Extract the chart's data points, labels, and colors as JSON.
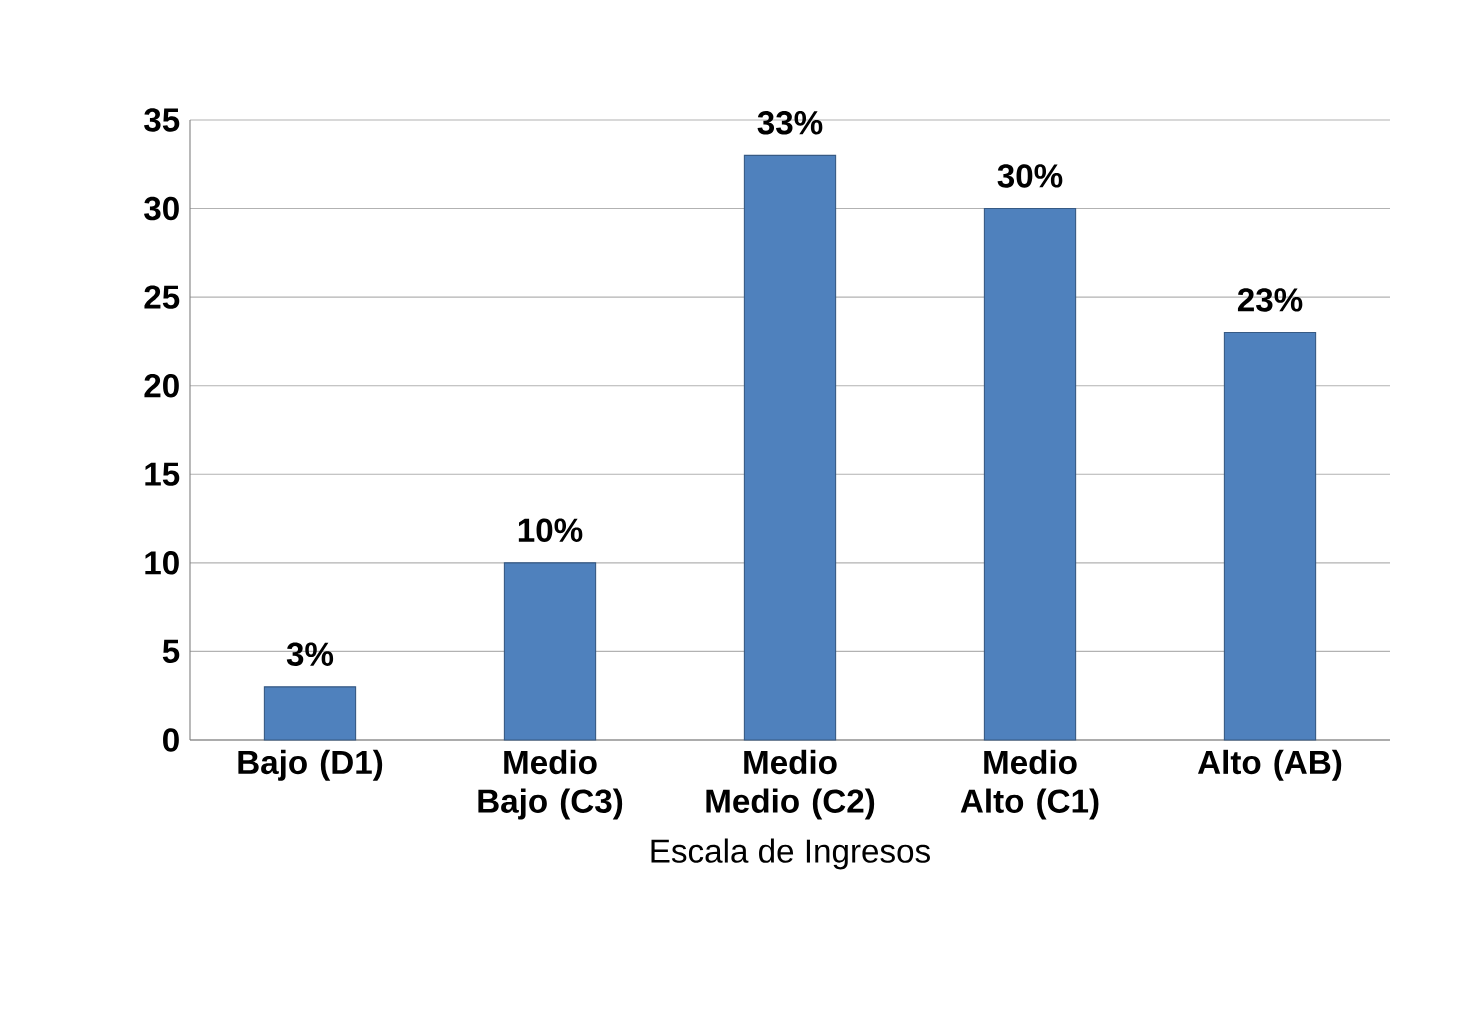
{
  "chart_data": {
    "type": "bar",
    "xlabel": "Escala de Ingresos",
    "categories": [
      "Bajo (D1)",
      "Medio Bajo (C3)",
      "Medio Medio (C2)",
      "Medio Alto (C1)",
      "Alto (AB)"
    ],
    "values": [
      3,
      10,
      33,
      30,
      23
    ],
    "value_labels": [
      "3%",
      "10%",
      "33%",
      "30%",
      "23%"
    ],
    "color": "#4f81bd",
    "ylim": [
      0,
      35
    ],
    "yticks": [
      0,
      5,
      10,
      15,
      20,
      25,
      30,
      35
    ],
    "grid": "y"
  }
}
